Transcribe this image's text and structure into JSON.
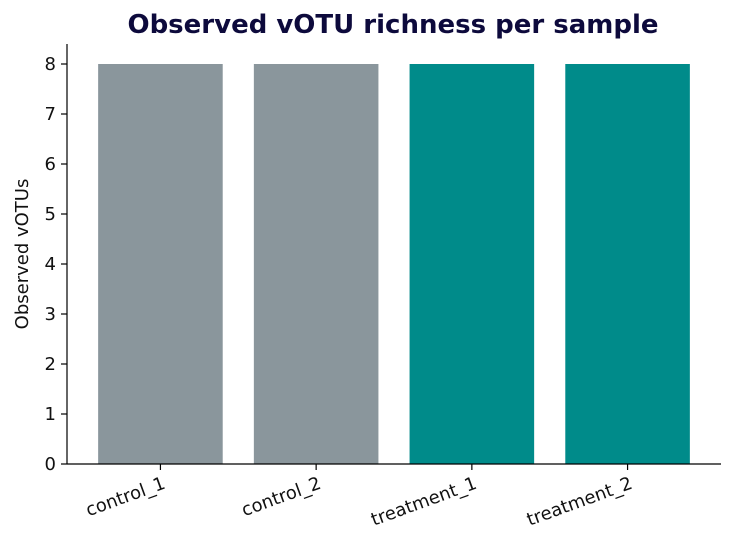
{
  "chart_data": {
    "type": "bar",
    "title": "Observed vOTU richness per sample",
    "xlabel": "",
    "ylabel": "Observed vOTUs",
    "categories": [
      "control_1",
      "control_2",
      "treatment_1",
      "treatment_2"
    ],
    "values": [
      8,
      8,
      8,
      8
    ],
    "groups": [
      "control",
      "control",
      "treatment",
      "treatment"
    ],
    "bar_colors": [
      "#8a969c",
      "#8a969c",
      "#008b8a",
      "#008b8a"
    ],
    "ylim": [
      0,
      8.4
    ],
    "yticks": [
      0,
      1,
      2,
      3,
      4,
      5,
      6,
      7,
      8
    ],
    "ytick_labels": [
      "0",
      "1",
      "2",
      "3",
      "4",
      "5",
      "6",
      "7",
      "8"
    ],
    "grid": false,
    "legend": "none"
  }
}
